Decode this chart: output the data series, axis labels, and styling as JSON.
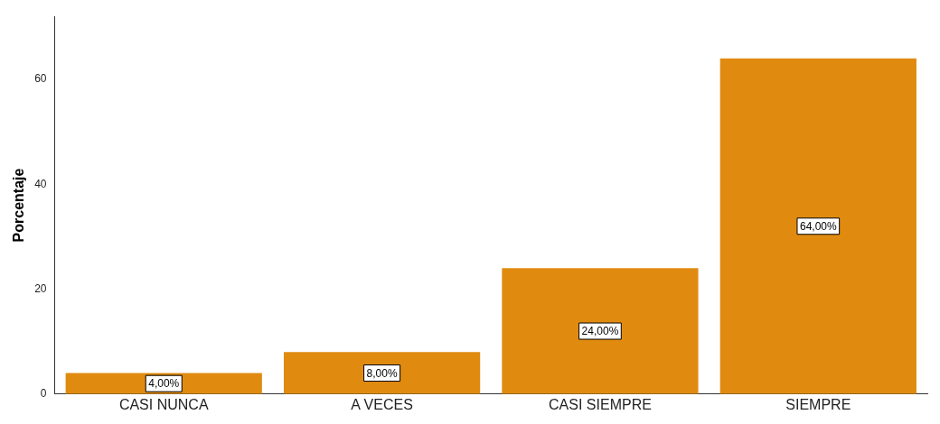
{
  "chart_data": {
    "type": "bar",
    "ylabel": "Porcentaje",
    "categories": [
      "CASI NUNCA",
      "A VECES",
      "CASI SIEMPRE",
      "SIEMPRE"
    ],
    "values": [
      4,
      8,
      24,
      64
    ],
    "value_labels": [
      "4,00%",
      "8,00%",
      "24,00%",
      "64,00%"
    ],
    "color": "#e08b10",
    "ylim": [
      0,
      72
    ],
    "yticks": [
      0,
      20,
      40,
      60
    ],
    "grid": false,
    "legend": false
  }
}
